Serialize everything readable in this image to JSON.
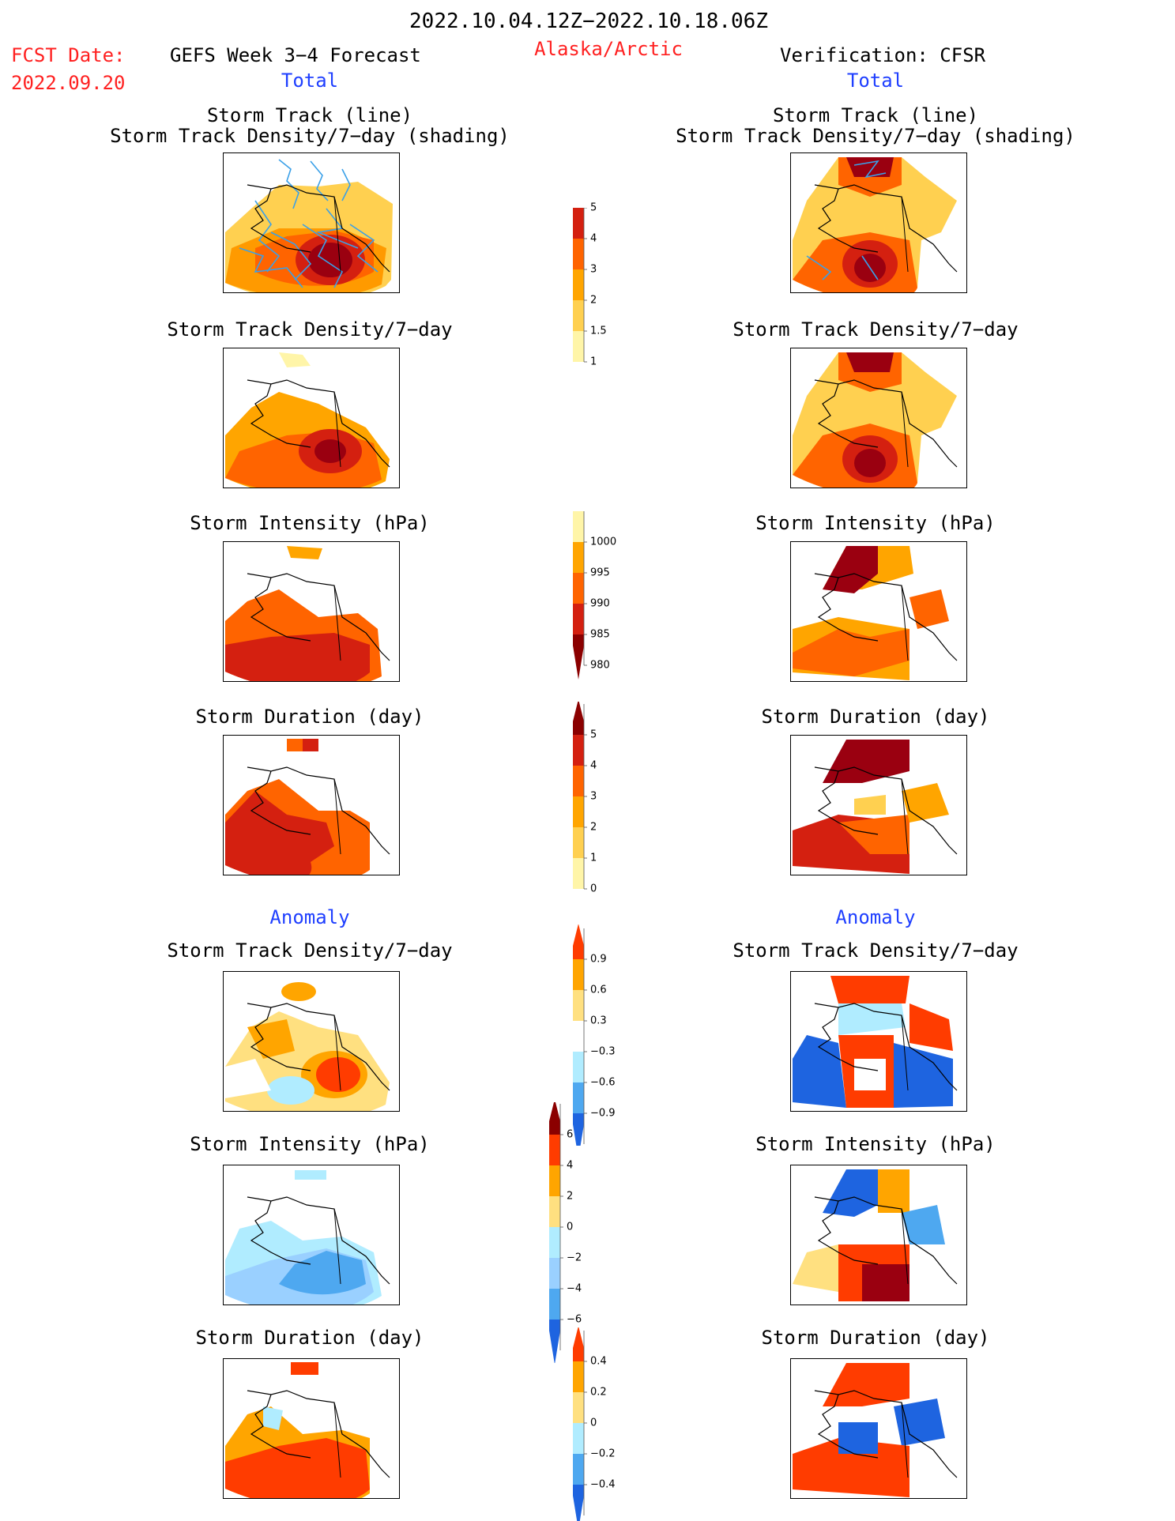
{
  "header": {
    "period": "2022.10.04.12Z−2022.10.18.06Z",
    "fcst_label": "FCST Date:",
    "fcst_date": "2022.09.20",
    "forecast_title": "GEFS Week 3−4 Forecast",
    "region": "Alaska/Arctic",
    "verification": "Verification: CFSR"
  },
  "sections": {
    "total_left": "Total",
    "total_right": "Total",
    "anomaly_left": "Anomaly",
    "anomaly_right": "Anomaly"
  },
  "panel_titles": {
    "track_line": "Storm Track (line)",
    "track_shading": "Storm Track Density/7−day (shading)",
    "density": "Storm Track Density/7−day",
    "intensity": "Storm Intensity (hPa)",
    "duration": "Storm Duration (day)"
  },
  "colorbars": {
    "density_total": {
      "labels": [
        "5",
        "4",
        "3",
        "2",
        "1.5",
        "1"
      ],
      "colors": [
        "#8b0000",
        "#d42010",
        "#ff6400",
        "#ffa500",
        "#ffd050",
        "#fff5a8"
      ]
    },
    "intensity_total": {
      "labels": [
        "1000",
        "995",
        "990",
        "985",
        "980"
      ],
      "colors": [
        "#fff5a8",
        "#ffa500",
        "#ff6400",
        "#d42010",
        "#8b0000"
      ]
    },
    "duration_total": {
      "labels": [
        "5",
        "4",
        "3",
        "2",
        "1",
        "0"
      ],
      "colors": [
        "#8b0000",
        "#d42010",
        "#ff6400",
        "#ffa500",
        "#ffd050",
        "#fff5a8"
      ]
    },
    "density_anomaly": {
      "labels": [
        "0.9",
        "0.6",
        "0.3",
        "−0.3",
        "−0.6",
        "−0.9"
      ],
      "colors": [
        "#ff3c00",
        "#ffa500",
        "#ffe080",
        "#ffffff",
        "#b0ecff",
        "#4ea8f0",
        "#1e64e0"
      ]
    },
    "intensity_anomaly": {
      "labels": [
        "6",
        "4",
        "2",
        "0",
        "−2",
        "−4",
        "−6"
      ],
      "colors": [
        "#8b0000",
        "#ff3c00",
        "#ffa500",
        "#ffe080",
        "#b0ecff",
        "#9ad0ff",
        "#4ea8f0",
        "#1e64e0"
      ]
    },
    "duration_anomaly": {
      "labels": [
        "0.4",
        "0.2",
        "0",
        "−0.2",
        "−0.4"
      ],
      "colors": [
        "#ff3c00",
        "#ffa500",
        "#ffe080",
        "#b0ecff",
        "#4ea8f0",
        "#1e64e0"
      ]
    }
  }
}
